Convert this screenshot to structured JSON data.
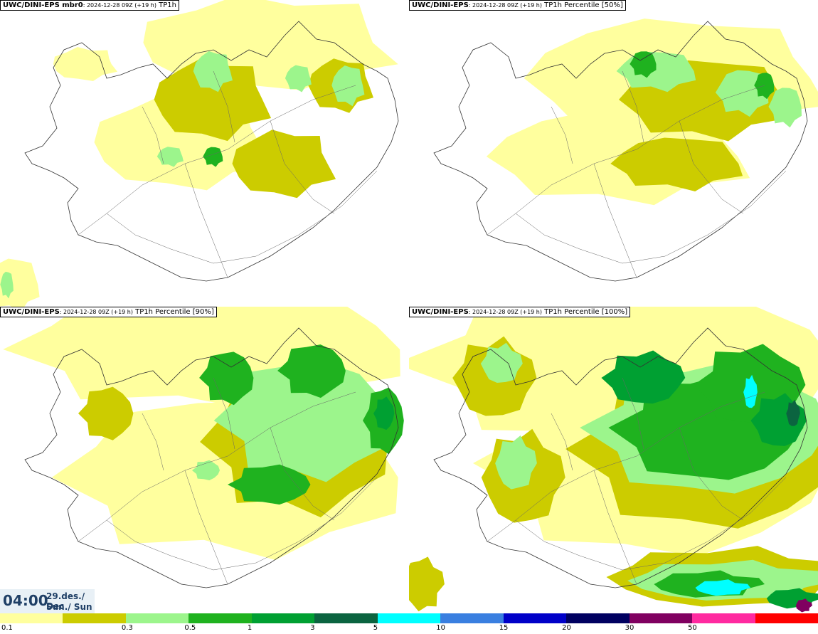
{
  "panels": [
    {
      "model": "UWC/DINI-EPS mbr0",
      "info": ": 2024-12-28 09Z (+19 h)",
      "field": "TP1h",
      "level": 0
    },
    {
      "model": "UWC/DINI-EPS",
      "info": ": 2024-12-28 09Z (+19 h)",
      "field": "TP1h Percentile [50%]",
      "level": 1
    },
    {
      "model": "UWC/DINI-EPS",
      "info": ": 2024-12-28 09Z (+19 h)",
      "field": "TP1h Percentile [90%]",
      "level": 2
    },
    {
      "model": "UWC/DINI-EPS",
      "info": ": 2024-12-28 09Z (+19 h)",
      "field": "TP1h Percentile [100%]",
      "level": 3
    }
  ],
  "valid_time": {
    "time": "04:00",
    "date_line1": "29.des./ Dec",
    "date_line2": "Sun./ Sun"
  },
  "legend": {
    "colors": [
      "#ffff9e",
      "#cccc00",
      "#9cf58c",
      "#1fb21f",
      "#00a032",
      "#0b6440",
      "#00ffff",
      "#3a7fe0",
      "#0000c8",
      "#000060",
      "#800060",
      "#ff2aa0",
      "#ff0000"
    ],
    "ticks": [
      "0.1",
      "0.3",
      "0.5",
      "1",
      "3",
      "5",
      "10",
      "15",
      "20",
      "30",
      "50"
    ]
  }
}
